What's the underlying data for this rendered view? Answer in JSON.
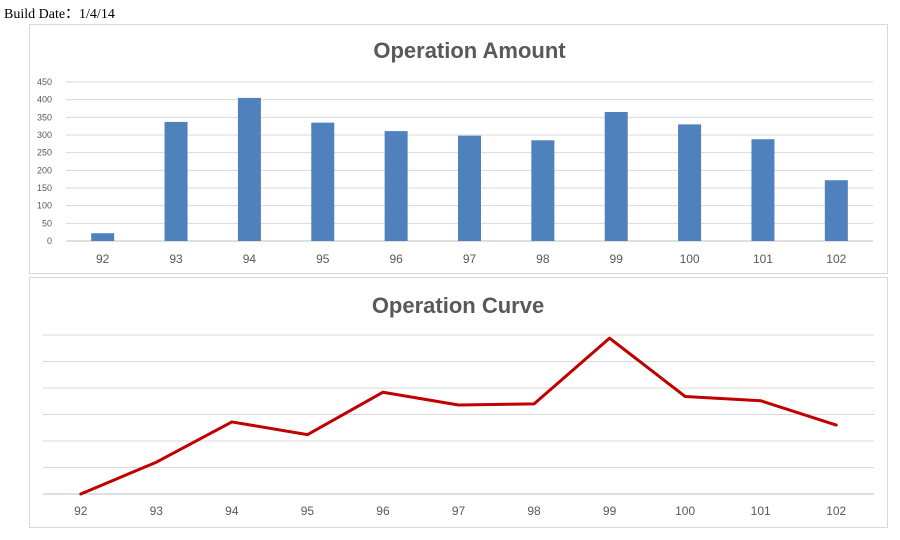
{
  "header": {
    "build_date": "Build Date：1/4/14"
  },
  "colors": {
    "bar": "#4f81bd",
    "line": "#c00000"
  },
  "chart_data": [
    {
      "type": "bar",
      "title": "Operation Amount",
      "categories": [
        "92",
        "93",
        "94",
        "95",
        "96",
        "97",
        "98",
        "99",
        "100",
        "101",
        "102"
      ],
      "values": [
        22,
        337,
        405,
        335,
        311,
        298,
        285,
        365,
        330,
        288,
        172
      ],
      "ylim": [
        0,
        450
      ],
      "yticks": [
        0,
        50,
        100,
        150,
        200,
        250,
        300,
        350,
        400,
        450
      ],
      "grid": true,
      "legend": "none"
    },
    {
      "type": "line",
      "title": "Operation Curve",
      "categories": [
        "92",
        "93",
        "94",
        "95",
        "96",
        "97",
        "98",
        "99",
        "100",
        "101",
        "102"
      ],
      "values": [
        0,
        30,
        68,
        56,
        96,
        84,
        85,
        147,
        92,
        88,
        65
      ],
      "ylim": [
        0,
        150
      ],
      "grid": true,
      "y_tick_labels_shown": false,
      "legend": "none"
    }
  ]
}
